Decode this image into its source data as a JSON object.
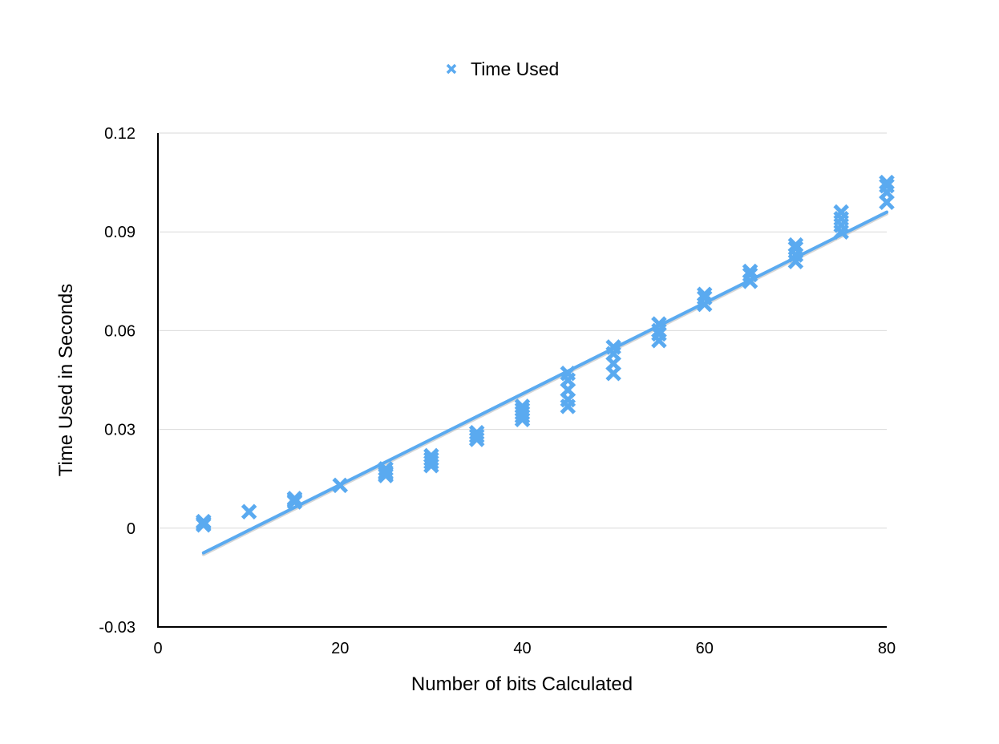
{
  "chart_data": {
    "type": "scatter",
    "title": "",
    "xlabel": "Number of bits Calculated",
    "ylabel": "Time Used in Seconds",
    "xlim": [
      0,
      80
    ],
    "ylim": [
      -0.03,
      0.12
    ],
    "x_ticks": [
      0,
      20,
      40,
      60,
      80
    ],
    "y_ticks": [
      -0.03,
      0,
      0.03,
      0.06,
      0.09,
      0.12
    ],
    "x_tick_labels": [
      "0",
      "20",
      "40",
      "60",
      "80"
    ],
    "y_tick_labels": [
      "-0.03",
      "0",
      "0.03",
      "0.06",
      "0.09",
      "0.12"
    ],
    "grid": "horizontal",
    "legend_position": "top-center",
    "marker_color": "#5aaaf0",
    "trendline": {
      "type": "linear",
      "x": [
        5,
        80
      ],
      "y": [
        -0.0075,
        0.096
      ]
    },
    "series": [
      {
        "name": "Time Used",
        "marker": "x",
        "points": [
          [
            5,
            0.001
          ],
          [
            5,
            0.002
          ],
          [
            5,
            0.0015
          ],
          [
            10,
            0.005
          ],
          [
            15,
            0.008
          ],
          [
            15,
            0.009
          ],
          [
            15,
            0.0085
          ],
          [
            20,
            0.013
          ],
          [
            25,
            0.016
          ],
          [
            25,
            0.017
          ],
          [
            25,
            0.018
          ],
          [
            25,
            0.0165
          ],
          [
            30,
            0.019
          ],
          [
            30,
            0.02
          ],
          [
            30,
            0.021
          ],
          [
            30,
            0.022
          ],
          [
            35,
            0.027
          ],
          [
            35,
            0.028
          ],
          [
            35,
            0.029
          ],
          [
            40,
            0.033
          ],
          [
            40,
            0.034
          ],
          [
            40,
            0.035
          ],
          [
            40,
            0.036
          ],
          [
            40,
            0.037
          ],
          [
            45,
            0.037
          ],
          [
            45,
            0.039
          ],
          [
            45,
            0.042
          ],
          [
            45,
            0.045
          ],
          [
            45,
            0.047
          ],
          [
            50,
            0.047
          ],
          [
            50,
            0.05
          ],
          [
            50,
            0.053
          ],
          [
            50,
            0.055
          ],
          [
            55,
            0.057
          ],
          [
            55,
            0.059
          ],
          [
            55,
            0.06
          ],
          [
            55,
            0.062
          ],
          [
            60,
            0.068
          ],
          [
            60,
            0.07
          ],
          [
            60,
            0.071
          ],
          [
            65,
            0.075
          ],
          [
            65,
            0.077
          ],
          [
            65,
            0.078
          ],
          [
            70,
            0.081
          ],
          [
            70,
            0.083
          ],
          [
            70,
            0.085
          ],
          [
            70,
            0.086
          ],
          [
            75,
            0.09
          ],
          [
            75,
            0.092
          ],
          [
            75,
            0.094
          ],
          [
            75,
            0.096
          ],
          [
            80,
            0.099
          ],
          [
            80,
            0.102
          ],
          [
            80,
            0.104
          ],
          [
            80,
            0.105
          ]
        ]
      }
    ]
  }
}
